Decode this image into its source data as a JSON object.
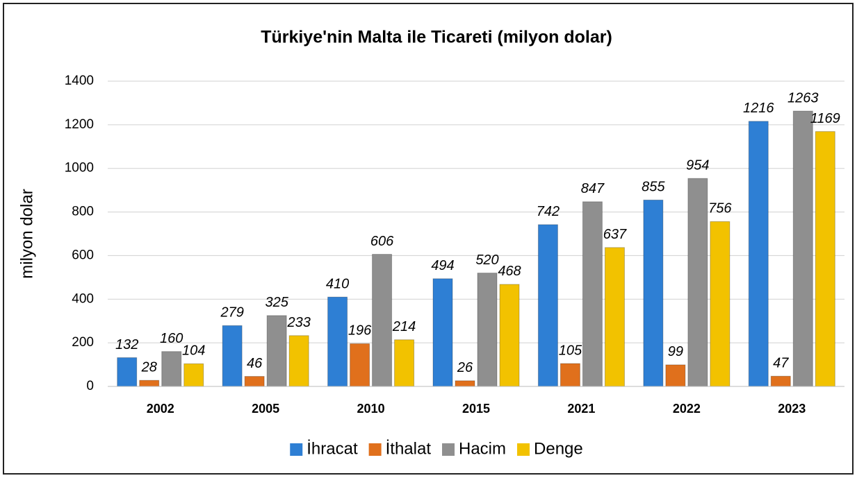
{
  "chart_data": {
    "type": "bar",
    "title": "Türkiye'nin Malta ile Ticareti (milyon dolar)",
    "y_label": "milyon dolar",
    "categories": [
      "2002",
      "2005",
      "2010",
      "2015",
      "2021",
      "2022",
      "2023"
    ],
    "series": [
      {
        "name": "İhracat",
        "color": "#2e7fd4",
        "values": [
          132,
          279,
          410,
          494,
          742,
          855,
          1216
        ]
      },
      {
        "name": "İthalat",
        "color": "#e0701c",
        "values": [
          28,
          46,
          196,
          26,
          105,
          99,
          47
        ]
      },
      {
        "name": "Hacim",
        "color": "#8f8f8f",
        "values": [
          160,
          325,
          606,
          520,
          847,
          954,
          1263
        ]
      },
      {
        "name": "Denge",
        "color": "#f2c200",
        "values": [
          104,
          233,
          214,
          468,
          637,
          756,
          1169
        ]
      }
    ],
    "ylim": [
      0,
      1400
    ],
    "yticks": [
      0,
      200,
      400,
      600,
      800,
      1000,
      1200,
      1400
    ],
    "grid": true,
    "legend": "bottom"
  }
}
